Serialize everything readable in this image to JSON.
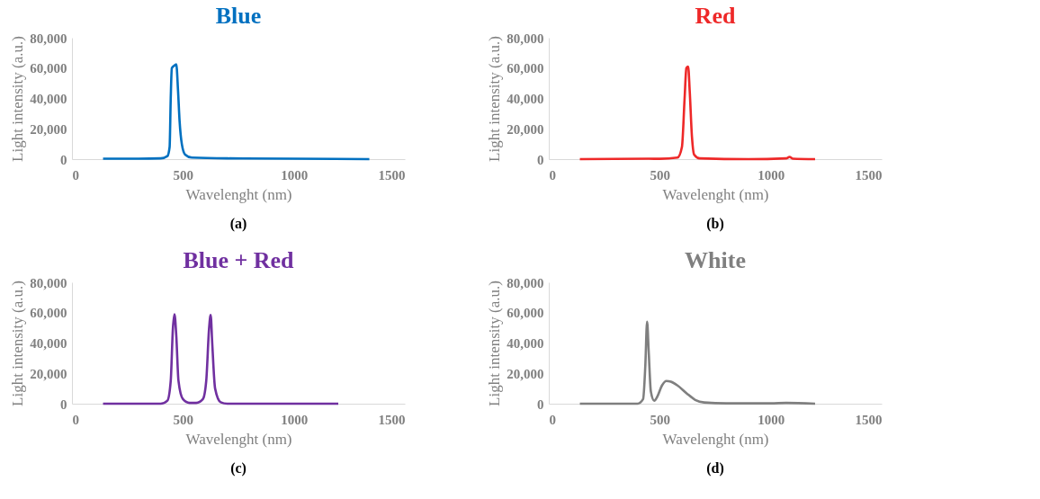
{
  "chart_data": [
    {
      "type": "line",
      "title": "Blue",
      "xlabel": "Wavelenght (nm)",
      "ylabel": "Light intensity (a.u.)",
      "annotations": [
        "(a)"
      ],
      "x": [
        140,
        300,
        400,
        430,
        440,
        445,
        450,
        460,
        470,
        478,
        485,
        495,
        510,
        540,
        700,
        1000,
        1340
      ],
      "series": [
        {
          "color": "#0070c0",
          "values": [
            300,
            300,
            500,
            2000,
            8000,
            40000,
            60000,
            61500,
            62500,
            45000,
            25000,
            10000,
            3000,
            1000,
            500,
            300,
            0
          ]
        }
      ],
      "xlim": [
        0,
        1500
      ],
      "xticks": [
        0,
        500,
        1000,
        1500
      ],
      "ylim": [
        0,
        80000
      ],
      "yticks": [
        {
          "value": 0,
          "label": "0"
        },
        {
          "value": 20000,
          "label": "20,000"
        },
        {
          "value": 40000,
          "label": "40,000"
        },
        {
          "value": 60000,
          "label": "60,000"
        },
        {
          "value": 80000,
          "label": "80,000"
        }
      ],
      "grid": false
    },
    {
      "type": "line",
      "title": "Red",
      "xlabel": "Wavelenght (nm)",
      "ylabel": "Light intensity (a.u.)",
      "annotations": [
        "(b)"
      ],
      "x": [
        140,
        450,
        500,
        580,
        600,
        612,
        620,
        628,
        635,
        645,
        655,
        680,
        900,
        1070,
        1085,
        1100,
        1200
      ],
      "series": [
        {
          "color": "#ee2828",
          "values": [
            0,
            300,
            200,
            1000,
            8000,
            40000,
            60000,
            61000,
            45000,
            15000,
            3000,
            500,
            0,
            500,
            1500,
            300,
            0
          ]
        }
      ],
      "xlim": [
        0,
        1500
      ],
      "xticks": [
        0,
        500,
        1000,
        1500
      ],
      "ylim": [
        0,
        80000
      ],
      "yticks": [
        {
          "value": 0,
          "label": "0"
        },
        {
          "value": 20000,
          "label": "20,000"
        },
        {
          "value": 40000,
          "label": "40,000"
        },
        {
          "value": 60000,
          "label": "60,000"
        },
        {
          "value": 80000,
          "label": "80,000"
        }
      ],
      "grid": false
    },
    {
      "type": "line",
      "title": "Blue + Red",
      "xlabel": "Wavelenght (nm)",
      "ylabel": "Light intensity (a.u.)",
      "annotations": [
        "(c)"
      ],
      "x": [
        140,
        400,
        430,
        445,
        455,
        462,
        470,
        480,
        500,
        530,
        560,
        590,
        605,
        618,
        625,
        632,
        645,
        670,
        700,
        1200
      ],
      "series": [
        {
          "color": "#7030a0",
          "values": [
            0,
            0,
            2000,
            15000,
            50000,
            59000,
            45000,
            15000,
            3000,
            500,
            500,
            3000,
            15000,
            50000,
            58500,
            40000,
            10000,
            1000,
            0,
            0
          ]
        }
      ],
      "xlim": [
        0,
        1500
      ],
      "xticks": [
        0,
        500,
        1000,
        1500
      ],
      "ylim": [
        0,
        80000
      ],
      "yticks": [
        {
          "value": 0,
          "label": "0"
        },
        {
          "value": 20000,
          "label": "20,000"
        },
        {
          "value": 40000,
          "label": "40,000"
        },
        {
          "value": 60000,
          "label": "60,000"
        },
        {
          "value": 80000,
          "label": "80,000"
        }
      ],
      "grid": false
    },
    {
      "type": "line",
      "title": "White",
      "xlabel": "Wavelenght (nm)",
      "ylabel": "Light intensity (a.u.)",
      "annotations": [
        "(d)"
      ],
      "x": [
        140,
        400,
        425,
        435,
        443,
        450,
        460,
        475,
        490,
        510,
        530,
        550,
        580,
        620,
        660,
        700,
        800,
        1000,
        1070,
        1200
      ],
      "series": [
        {
          "color": "#7f7f7f",
          "values": [
            0,
            0,
            3000,
            25000,
            54000,
            35000,
            8000,
            2000,
            5000,
            12000,
            15000,
            14500,
            12000,
            7000,
            2500,
            800,
            200,
            200,
            500,
            0
          ]
        }
      ],
      "xlim": [
        0,
        1500
      ],
      "xticks": [
        0,
        500,
        1000,
        1500
      ],
      "ylim": [
        0,
        80000
      ],
      "yticks": [
        {
          "value": 0,
          "label": "0"
        },
        {
          "value": 20000,
          "label": "20,000"
        },
        {
          "value": 40000,
          "label": "40,000"
        },
        {
          "value": 60000,
          "label": "60,000"
        },
        {
          "value": 80000,
          "label": "80,000"
        }
      ],
      "grid": false
    }
  ]
}
